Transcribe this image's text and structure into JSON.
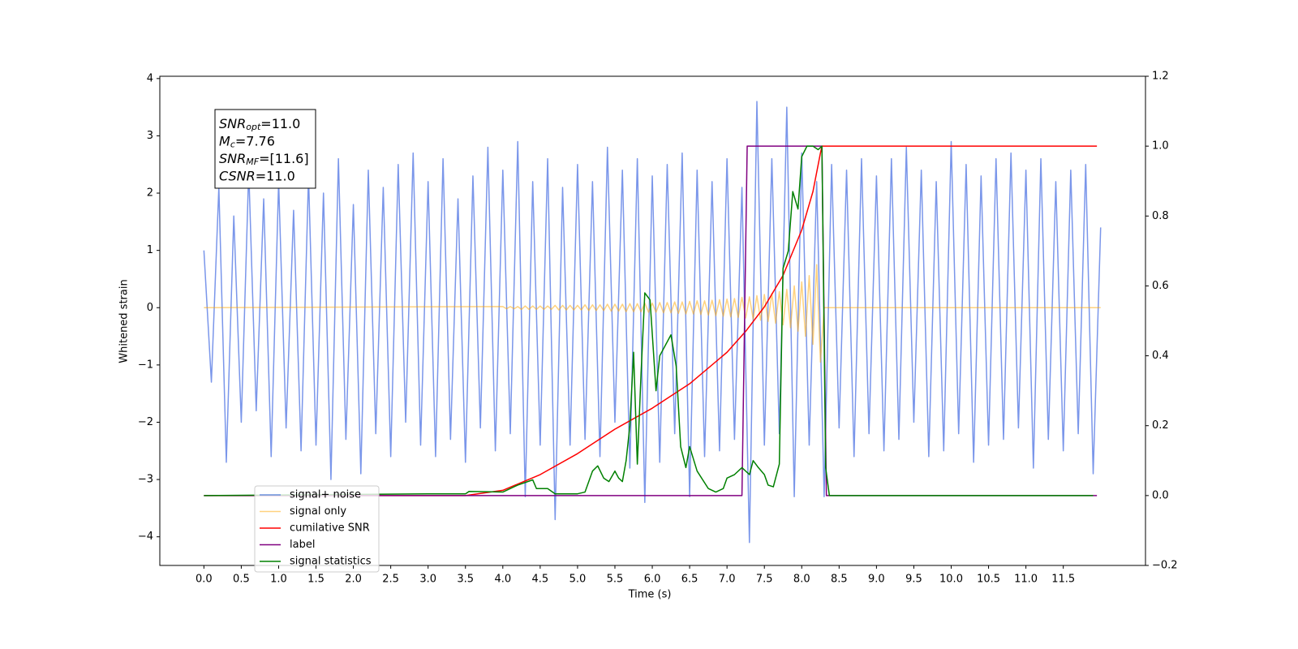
{
  "chart_data": {
    "type": "line",
    "xlabel": "Time (s)",
    "ylabel": "Whitened strain",
    "xlim": [
      -0.59,
      12.6
    ],
    "ylim": [
      -4.5,
      4.04
    ],
    "y2lim": [
      -0.2,
      1.2
    ],
    "xticks": [
      {
        "value": 0,
        "label": "0.0"
      },
      0.5,
      {
        "value": 1,
        "label": "1.0"
      },
      1.5,
      {
        "value": 2,
        "label": "2.0"
      },
      2.5,
      {
        "value": 3,
        "label": "3.0"
      },
      3.5,
      {
        "value": 4,
        "label": "4.0"
      },
      4.5,
      {
        "value": 5,
        "label": "5.0"
      },
      5.5,
      {
        "value": 6,
        "label": "6.0"
      },
      6.5,
      {
        "value": 7,
        "label": "7.0"
      },
      7.5,
      {
        "value": 8,
        "label": "8.0"
      },
      8.5,
      {
        "value": 9,
        "label": "9.0"
      },
      9.5,
      {
        "value": 10,
        "label": "10.0"
      },
      10.5,
      {
        "value": 11,
        "label": "11.0"
      },
      11.5
    ],
    "yticks": [
      {
        "value": -4,
        "label": "−4"
      },
      {
        "value": -3,
        "label": "−3"
      },
      {
        "value": -2,
        "label": "−2"
      },
      {
        "value": -1,
        "label": "−1"
      },
      0,
      1,
      2,
      3,
      4
    ],
    "y2ticks": [
      {
        "value": -0.2,
        "label": "−0.2"
      },
      {
        "value": 0,
        "label": "0.0"
      },
      0.2,
      0.4,
      0.6,
      0.8,
      {
        "value": 1,
        "label": "1.0"
      },
      1.2
    ],
    "legend": "lower left",
    "annotations": [
      {
        "text": "SNR",
        "sub": "opt",
        "value": "=11.0"
      },
      {
        "text": "M",
        "sub": "c",
        "value": "=7.76"
      },
      {
        "text": "SNR",
        "sub": "MF",
        "value": "=[11.6]"
      },
      {
        "text": "CSNR",
        "value": "=11.0"
      }
    ],
    "series": [
      {
        "name": "signal+ noise",
        "color": "royalblue",
        "alpha": 0.7,
        "x": [
          0,
          0.1,
          0.2,
          0.3,
          0.4,
          0.5,
          0.6,
          0.7,
          0.8,
          0.9,
          1,
          1.1,
          1.2,
          1.3,
          1.4,
          1.5,
          1.6,
          1.7,
          1.8,
          1.9,
          2,
          2.1,
          2.2,
          2.3,
          2.4,
          2.5,
          2.6,
          2.7,
          2.8,
          2.9,
          3,
          3.1,
          3.2,
          3.3,
          3.4,
          3.5,
          3.6,
          3.7,
          3.8,
          3.9,
          4,
          4.1,
          4.2,
          4.3,
          4.4,
          4.5,
          4.6,
          4.7,
          4.8,
          4.9,
          5,
          5.1,
          5.2,
          5.3,
          5.4,
          5.5,
          5.6,
          5.7,
          5.8,
          5.9,
          6,
          6.1,
          6.2,
          6.3,
          6.4,
          6.5,
          6.6,
          6.7,
          6.8,
          6.9,
          7,
          7.1,
          7.2,
          7.3,
          7.4,
          7.5,
          7.6,
          7.7,
          7.8,
          7.9,
          8,
          8.1,
          8.2,
          8.3,
          8.4,
          8.5,
          8.6,
          8.7,
          8.8,
          8.9,
          9,
          9.1,
          9.2,
          9.3,
          9.4,
          9.5,
          9.6,
          9.7,
          9.8,
          9.9,
          10,
          10.1,
          10.2,
          10.3,
          10.4,
          10.5,
          10.6,
          10.7,
          10.8,
          10.9,
          11,
          11.1,
          11.2,
          11.3,
          11.4,
          11.5,
          11.6,
          11.7,
          11.8,
          11.9,
          12
        ],
        "values": [
          1.0,
          -1.3,
          2.1,
          -2.7,
          1.6,
          -2.0,
          2.4,
          -1.8,
          1.9,
          -2.6,
          2.2,
          -2.1,
          1.7,
          -2.5,
          2.3,
          -2.4,
          2.0,
          -3.0,
          2.6,
          -2.3,
          1.8,
          -2.9,
          2.4,
          -2.2,
          2.1,
          -2.6,
          2.5,
          -2.0,
          2.7,
          -2.4,
          2.2,
          -2.6,
          2.6,
          -2.3,
          1.9,
          -2.7,
          2.3,
          -2.1,
          2.8,
          -2.5,
          2.4,
          -2.2,
          2.9,
          -3.3,
          2.2,
          -2.4,
          2.6,
          -3.7,
          2.1,
          -2.4,
          2.5,
          -2.3,
          2.2,
          -2.6,
          2.8,
          -2.0,
          2.4,
          -2.8,
          2.6,
          -3.4,
          2.3,
          -2.7,
          2.5,
          -2.2,
          2.7,
          -3.3,
          2.4,
          -2.6,
          2.2,
          -2.5,
          2.6,
          -2.3,
          2.1,
          -4.1,
          3.6,
          -2.4,
          2.6,
          -2.2,
          3.5,
          -3.3,
          2.7,
          -2.4,
          2.2,
          -3.3,
          2.5,
          -2.1,
          2.4,
          -2.6,
          2.6,
          -2.2,
          2.3,
          -2.5,
          2.6,
          -2.3,
          2.8,
          -2.0,
          2.4,
          -2.6,
          2.2,
          -2.5,
          2.9,
          -2.2,
          2.5,
          -2.7,
          2.3,
          -2.4,
          2.6,
          -2.3,
          2.7,
          -2.1,
          2.4,
          -2.8,
          2.6,
          -2.3,
          2.2,
          -2.5,
          2.4,
          -2.2,
          2.5,
          -2.9,
          1.4
        ]
      },
      {
        "name": "signal only",
        "color": "orange",
        "alpha": 0.5,
        "x": [
          0,
          4,
          4.05,
          4.1,
          4.15,
          4.2,
          4.25,
          4.3,
          4.35,
          4.4,
          4.45,
          4.5,
          4.55,
          4.6,
          4.65,
          4.7,
          4.75,
          4.8,
          4.85,
          4.9,
          4.95,
          5,
          5.05,
          5.1,
          5.15,
          5.2,
          5.25,
          5.3,
          5.35,
          5.4,
          5.45,
          5.5,
          5.55,
          5.6,
          5.65,
          5.7,
          5.75,
          5.8,
          5.85,
          5.9,
          5.95,
          6,
          6.05,
          6.1,
          6.15,
          6.2,
          6.25,
          6.3,
          6.35,
          6.4,
          6.45,
          6.5,
          6.55,
          6.6,
          6.65,
          6.7,
          6.75,
          6.8,
          6.85,
          6.9,
          6.95,
          7,
          7.05,
          7.1,
          7.15,
          7.2,
          7.25,
          7.3,
          7.35,
          7.4,
          7.45,
          7.5,
          7.55,
          7.6,
          7.65,
          7.7,
          7.75,
          7.8,
          7.85,
          7.9,
          7.95,
          8,
          8.05,
          8.1,
          8.15,
          8.2,
          8.25,
          8.3,
          12
        ],
        "values": [
          0,
          0.02,
          -0.02,
          0.02,
          -0.02,
          0.02,
          -0.03,
          0.03,
          -0.03,
          0.03,
          -0.03,
          0.03,
          -0.03,
          0.03,
          -0.03,
          0.04,
          -0.04,
          0.04,
          -0.04,
          0.04,
          -0.04,
          0.04,
          -0.04,
          0.05,
          -0.05,
          0.05,
          -0.05,
          0.05,
          -0.05,
          0.06,
          -0.06,
          0.06,
          -0.06,
          0.06,
          -0.07,
          0.07,
          -0.07,
          0.07,
          -0.07,
          0.08,
          -0.08,
          0.08,
          -0.08,
          0.09,
          -0.09,
          0.09,
          -0.09,
          0.1,
          -0.1,
          0.1,
          -0.11,
          0.11,
          -0.11,
          0.12,
          -0.12,
          0.12,
          -0.13,
          0.13,
          -0.14,
          0.14,
          -0.15,
          0.15,
          -0.16,
          0.16,
          -0.17,
          0.18,
          -0.18,
          0.19,
          -0.2,
          0.21,
          -0.22,
          0.23,
          -0.24,
          0.25,
          -0.27,
          0.28,
          -0.3,
          0.32,
          -0.35,
          0.38,
          -0.41,
          0.45,
          -0.5,
          0.56,
          -0.64,
          0.75,
          -0.95,
          0,
          0
        ]
      },
      {
        "name": "cumilative SNR",
        "color": "red",
        "axis": "y2",
        "x": [
          0,
          3.5,
          4,
          4.5,
          5,
          5.5,
          6,
          6.5,
          7,
          7.25,
          7.5,
          7.75,
          8,
          8.15,
          8.25,
          8.27,
          11.95
        ],
        "values": [
          0,
          0,
          0.015,
          0.06,
          0.12,
          0.19,
          0.25,
          0.32,
          0.41,
          0.47,
          0.54,
          0.63,
          0.76,
          0.87,
          0.98,
          1,
          1
        ]
      },
      {
        "name": "label",
        "color": "purple",
        "axis": "y2",
        "x": [
          0,
          7.2,
          7.27,
          8.27,
          8.33,
          11.95
        ],
        "values": [
          0,
          0,
          1,
          1,
          0,
          0
        ]
      },
      {
        "name": "signal statistics",
        "color": "green",
        "axis": "y2",
        "x": [
          0,
          3,
          3.5,
          3.55,
          4,
          4.2,
          4.4,
          4.45,
          4.6,
          4.7,
          5,
          5.1,
          5.2,
          5.27,
          5.35,
          5.42,
          5.5,
          5.55,
          5.6,
          5.65,
          5.7,
          5.75,
          5.8,
          5.85,
          5.9,
          5.97,
          6.05,
          6.1,
          6.25,
          6.32,
          6.38,
          6.45,
          6.5,
          6.6,
          6.75,
          6.85,
          6.95,
          7,
          7.1,
          7.2,
          7.3,
          7.35,
          7.42,
          7.5,
          7.55,
          7.62,
          7.7,
          7.75,
          7.82,
          7.88,
          7.95,
          8,
          8.07,
          8.15,
          8.22,
          8.27,
          8.32,
          8.37,
          11.9
        ],
        "values": [
          0,
          0.005,
          0.005,
          0.012,
          0.01,
          0.03,
          0.045,
          0.02,
          0.02,
          0.005,
          0.005,
          0.01,
          0.07,
          0.085,
          0.05,
          0.04,
          0.07,
          0.05,
          0.04,
          0.1,
          0.2,
          0.41,
          0.09,
          0.35,
          0.58,
          0.56,
          0.3,
          0.4,
          0.46,
          0.37,
          0.14,
          0.08,
          0.14,
          0.07,
          0.02,
          0.01,
          0.02,
          0.05,
          0.06,
          0.08,
          0.06,
          0.1,
          0.08,
          0.06,
          0.03,
          0.025,
          0.09,
          0.65,
          0.7,
          0.87,
          0.82,
          0.97,
          1,
          1,
          0.99,
          1,
          0.08,
          0,
          0
        ]
      }
    ]
  }
}
